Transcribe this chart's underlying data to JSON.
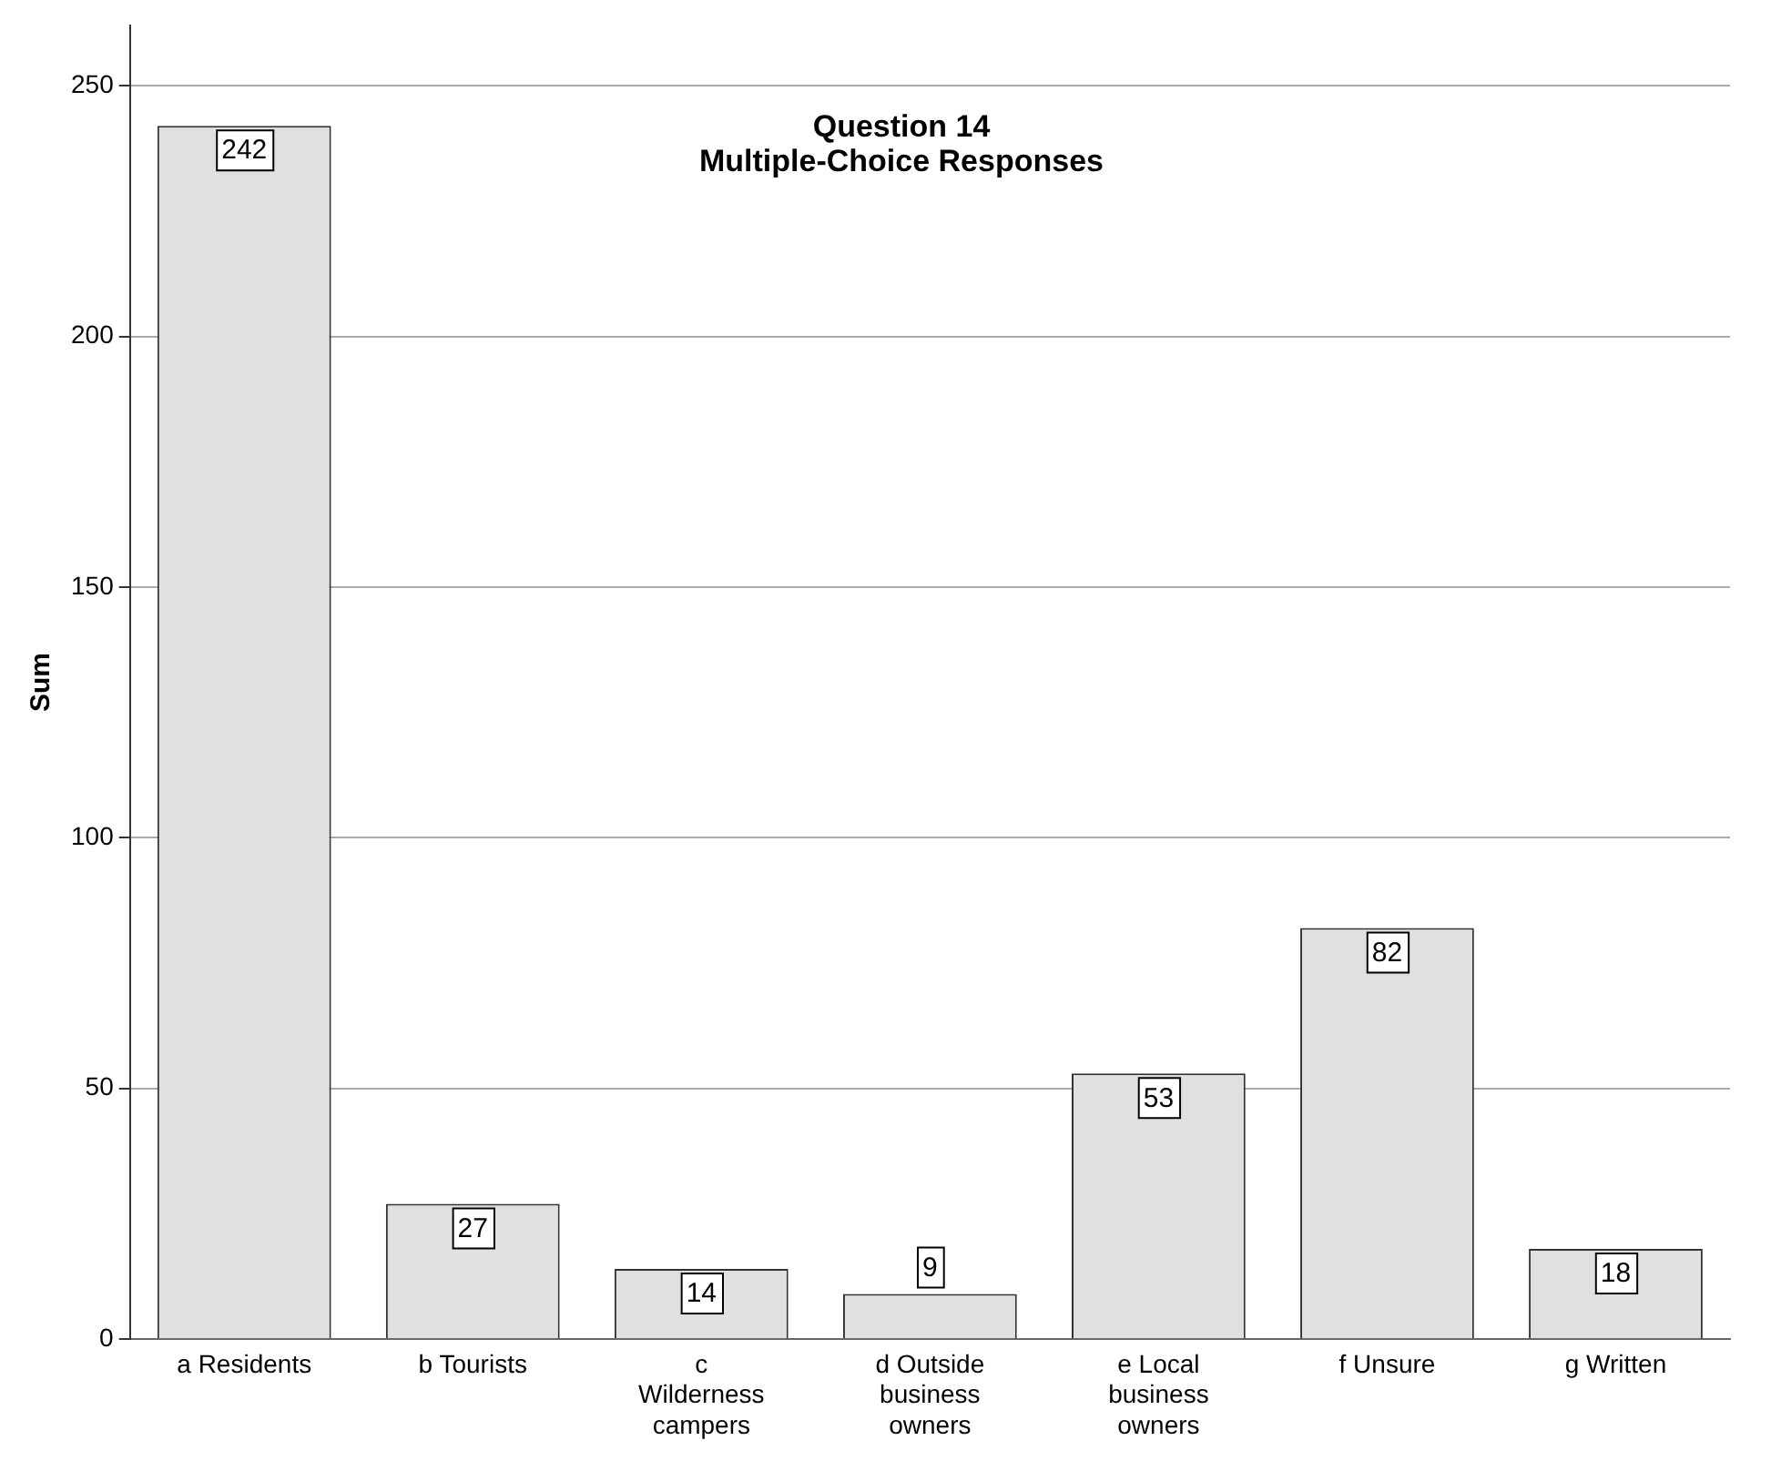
{
  "chart_data": {
    "type": "bar",
    "title": "Question 14\nMultiple-Choice Responses",
    "ylabel": "Sum",
    "categories": [
      "a Residents",
      "b Tourists",
      "c Wilderness campers",
      "d Outside business owners",
      "e Local business owners",
      "f Unsure",
      "g Written"
    ],
    "values": [
      242,
      27,
      14,
      9,
      53,
      82,
      18
    ],
    "color": "#e0e0e0",
    "ylim": [
      0,
      262
    ],
    "yticks": [
      0,
      50,
      100,
      150,
      200,
      250
    ],
    "grid": "y",
    "data_labels": true,
    "legend": false
  }
}
